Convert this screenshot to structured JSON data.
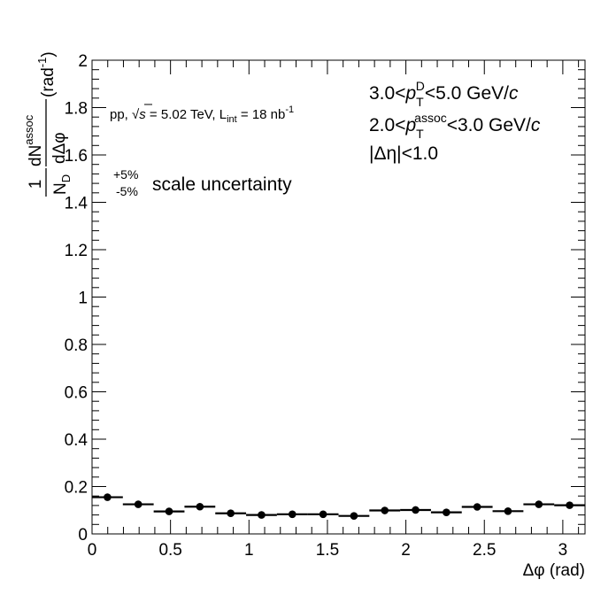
{
  "chart_data": {
    "type": "scatter",
    "xlabel": "Δφ (rad)",
    "ylabel": {
      "frac1_num": "1",
      "frac1_den_main": "N",
      "frac1_den_sub": "D",
      "frac2_num_main": "dN",
      "frac2_num_sup": "assoc",
      "frac2_den": "dΔφ",
      "unit_main": "(rad",
      "unit_sup": "-1",
      "unit_close": ")"
    },
    "xlim": [
      0,
      3.14159
    ],
    "ylim": [
      0,
      2
    ],
    "xticks": [
      "0",
      "0.5",
      "1",
      "1.5",
      "2",
      "2.5",
      "3"
    ],
    "yticks": [
      "0",
      "0.2",
      "0.4",
      "0.6",
      "0.8",
      "1",
      "1.2",
      "1.4",
      "1.6",
      "1.8",
      "2"
    ],
    "bin_width": 0.19635,
    "x": [
      0.0982,
      0.2945,
      0.4909,
      0.6872,
      0.8836,
      1.0799,
      1.2763,
      1.4726,
      1.669,
      1.8653,
      2.0617,
      2.258,
      2.4544,
      2.6507,
      2.8471,
      3.0434
    ],
    "y": [
      0.155,
      0.125,
      0.095,
      0.115,
      0.087,
      0.08,
      0.083,
      0.083,
      0.076,
      0.099,
      0.101,
      0.091,
      0.114,
      0.096,
      0.125,
      0.121
    ],
    "annotations": {
      "system_pre": "pp, ",
      "system_sqrt": "√",
      "system_s": "s",
      "system_mid": " = 5.02 TeV, L",
      "system_lsub": "int",
      "system_post": " = 18 nb",
      "system_sup": "-1",
      "ptd_pre": "3.0<",
      "ptd_p": "p",
      "ptd_sub": "T",
      "ptd_sup": "D",
      "ptd_post": "<5.0 GeV/",
      "ptd_c": "c",
      "pta_pre": "2.0<",
      "pta_p": "p",
      "pta_sub": "T",
      "pta_sup": "assoc",
      "pta_post": "<3.0 GeV/",
      "pta_c": "c",
      "eta_cut": "|Δη|<1.0",
      "scale_plus": "+5%",
      "scale_minus": "-5%",
      "scale_text": "scale uncertainty"
    }
  }
}
